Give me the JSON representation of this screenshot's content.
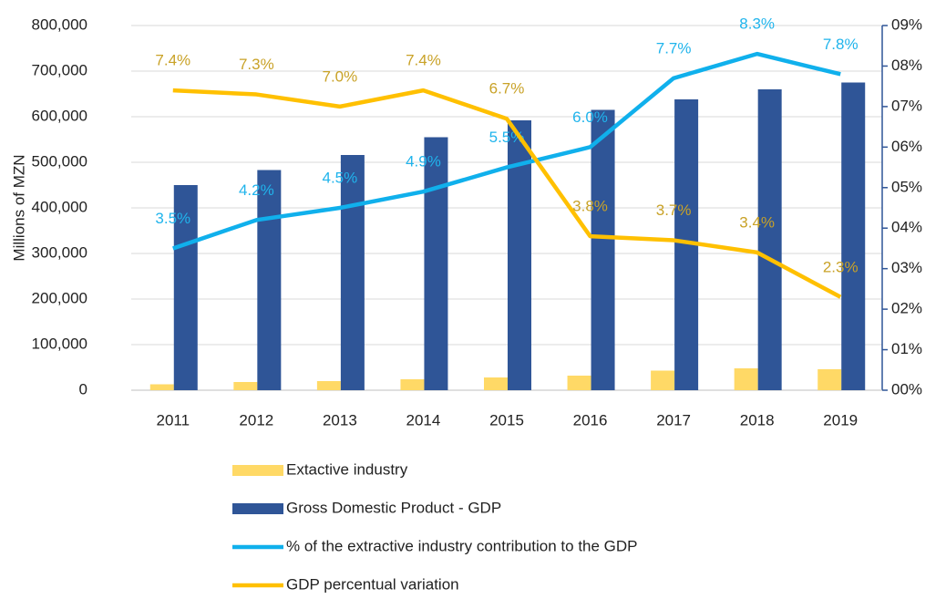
{
  "chart_data": {
    "type": "bar",
    "y_label": "Millions of MZN",
    "categories": [
      "2011",
      "2012",
      "2013",
      "2014",
      "2015",
      "2016",
      "2017",
      "2018",
      "2019"
    ],
    "series": [
      {
        "name": "Extactive industry",
        "type": "bar",
        "color": "#ffd966",
        "values": [
          13000,
          18000,
          20000,
          24000,
          28000,
          32000,
          43000,
          48000,
          46000
        ]
      },
      {
        "name": "Gross Domestic Product - GDP",
        "type": "bar",
        "color": "#2f5597",
        "values": [
          450000,
          483000,
          516000,
          555000,
          592000,
          615000,
          638000,
          660000,
          675000
        ]
      },
      {
        "name": "% of the extractive industry contribution to the GDP",
        "type": "line",
        "axis": "y2",
        "color": "#10b0ec",
        "label_color": "#20b4ec",
        "values": [
          3.5,
          4.2,
          4.5,
          4.9,
          5.5,
          6.0,
          7.7,
          8.3,
          7.8
        ],
        "value_labels": [
          "3.5%",
          "4.2%",
          "4.5%",
          "4.9%",
          "5.5%",
          "6.0%",
          "7.7%",
          "8.3%",
          "7.8%"
        ]
      },
      {
        "name": "GDP percentual variation",
        "type": "line",
        "axis": "y2",
        "color": "#ffc000",
        "label_color": "#c9a227",
        "values": [
          7.4,
          7.3,
          7.0,
          7.4,
          6.7,
          3.8,
          3.7,
          3.4,
          2.3
        ],
        "value_labels": [
          "7.4%",
          "7.3%",
          "7.0%",
          "7.4%",
          "6.7%",
          "3.8%",
          "3.7%",
          "3.4%",
          "2.3%"
        ]
      }
    ],
    "ylim": [
      0,
      800000
    ],
    "yticks": [
      0,
      {
        "value": 100000,
        "label": "100,000"
      },
      {
        "value": 200000,
        "label": "200,000"
      },
      {
        "value": 300000,
        "label": "300,000"
      },
      {
        "value": 400000,
        "label": "400,000"
      },
      {
        "value": 500000,
        "label": "500,000"
      },
      {
        "value": 600000,
        "label": "600,000"
      },
      {
        "value": 700000,
        "label": "700,000"
      },
      {
        "value": 800000,
        "label": "800,000"
      }
    ],
    "y2lim": [
      0,
      9
    ],
    "y2ticks": [
      {
        "value": 0,
        "label": "00%"
      },
      {
        "value": 1,
        "label": "01%"
      },
      {
        "value": 2,
        "label": "02%"
      },
      {
        "value": 3,
        "label": "03%"
      },
      {
        "value": 4,
        "label": "04%"
      },
      {
        "value": 5,
        "label": "05%"
      },
      {
        "value": 6,
        "label": "06%"
      },
      {
        "value": 7,
        "label": "07%"
      },
      {
        "value": 8,
        "label": "08%"
      },
      {
        "value": 9,
        "label": "09%"
      }
    ],
    "grid": true,
    "legend": "bottom"
  }
}
